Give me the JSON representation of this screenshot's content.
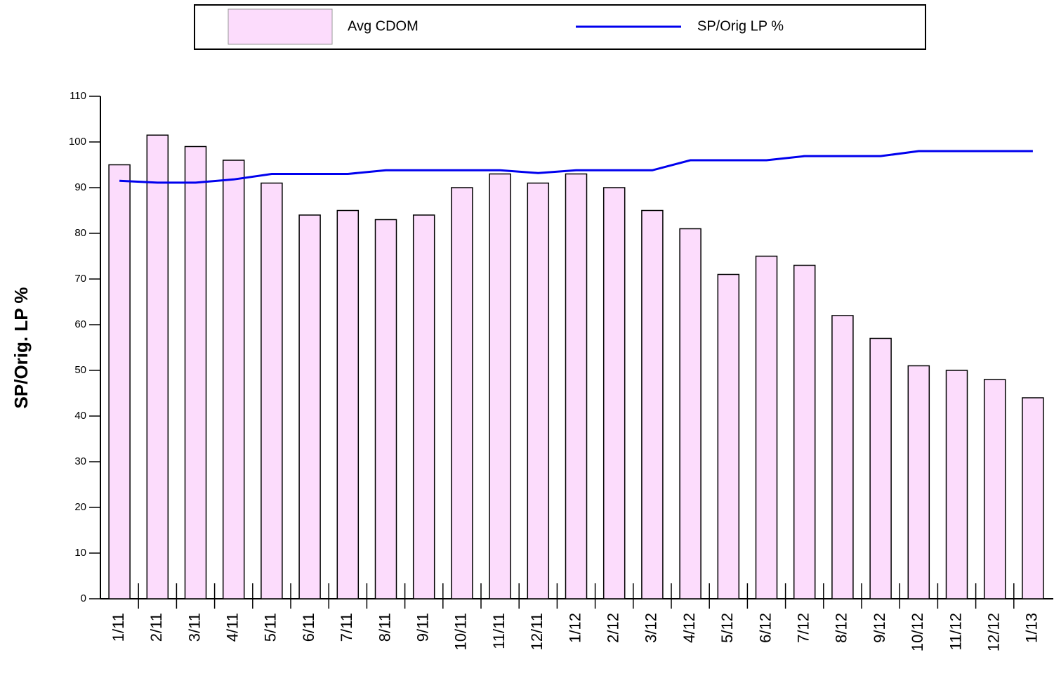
{
  "chart_data": {
    "type": "bar",
    "y_label": "SP/Orig. LP %",
    "categories": [
      "1/11",
      "2/11",
      "3/11",
      "4/11",
      "5/11",
      "6/11",
      "7/11",
      "8/11",
      "9/11",
      "10/11",
      "11/11",
      "12/11",
      "1/12",
      "2/12",
      "3/12",
      "4/12",
      "5/12",
      "6/12",
      "7/12",
      "8/12",
      "9/12",
      "10/12",
      "11/12",
      "12/12",
      "1/13"
    ],
    "series": [
      {
        "name": "Avg CDOM",
        "type": "bar",
        "color": "#fcdcfc",
        "values": [
          95,
          101.5,
          99,
          96,
          91,
          84,
          85,
          83,
          84,
          90,
          93,
          91,
          93,
          90,
          85,
          81,
          71,
          75,
          73,
          62,
          57,
          51,
          50,
          48,
          44
        ]
      },
      {
        "name": "SP/Orig LP %",
        "type": "line",
        "color": "#0000ee",
        "values": [
          91.5,
          91.1,
          91.1,
          91.8,
          93,
          93,
          93,
          93.8,
          93.8,
          93.8,
          93.8,
          93.2,
          93.8,
          93.8,
          93.8,
          96,
          96,
          96,
          96.9,
          96.9,
          96.9,
          98,
          98,
          98,
          98
        ]
      }
    ],
    "ylim": [
      0,
      110
    ],
    "yticks": [
      0,
      10,
      20,
      30,
      40,
      50,
      60,
      70,
      80,
      90,
      100,
      110
    ]
  }
}
